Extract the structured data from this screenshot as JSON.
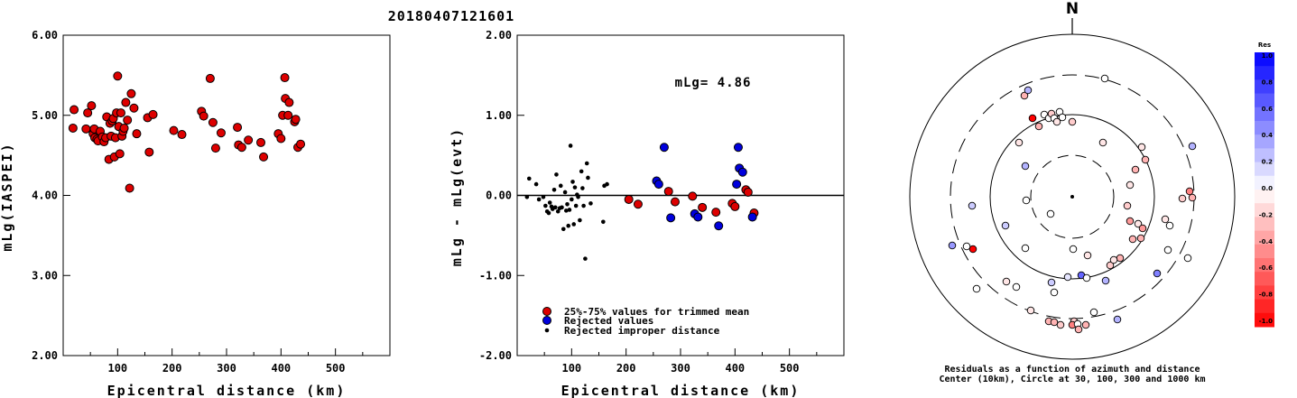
{
  "title": "20180407121601",
  "chart_data": [
    {
      "type": "scatter",
      "xlabel": "Epicentral distance (km)",
      "ylabel": "mLg(IASPEI)",
      "xlim": [
        0,
        600
      ],
      "ylim": [
        2.0,
        6.0
      ],
      "xticks": [
        "100",
        "200",
        "300",
        "400",
        "500"
      ],
      "yticks": [
        "2.00",
        "3.00",
        "4.00",
        "5.00",
        "6.00"
      ],
      "grid": false,
      "series": [
        {
          "color": "#dd0000",
          "points": [
            [
              18,
              4.84
            ],
            [
              20,
              5.07
            ],
            [
              42,
              4.83
            ],
            [
              45,
              5.03
            ],
            [
              52,
              5.12
            ],
            [
              55,
              4.77
            ],
            [
              57,
              4.83
            ],
            [
              58,
              4.72
            ],
            [
              62,
              4.7
            ],
            [
              64,
              4.68
            ],
            [
              68,
              4.8
            ],
            [
              72,
              4.73
            ],
            [
              75,
              4.67
            ],
            [
              78,
              4.72
            ],
            [
              80,
              4.98
            ],
            [
              84,
              4.45
            ],
            [
              86,
              4.9
            ],
            [
              88,
              4.74
            ],
            [
              90,
              4.93
            ],
            [
              92,
              4.96
            ],
            [
              94,
              4.48
            ],
            [
              96,
              4.72
            ],
            [
              98,
              5.03
            ],
            [
              100,
              5.49
            ],
            [
              102,
              4.86
            ],
            [
              104,
              4.52
            ],
            [
              106,
              5.03
            ],
            [
              108,
              4.74
            ],
            [
              110,
              4.8
            ],
            [
              112,
              4.84
            ],
            [
              115,
              5.16
            ],
            [
              118,
              4.94
            ],
            [
              122,
              4.09
            ],
            [
              125,
              5.27
            ],
            [
              130,
              5.09
            ],
            [
              135,
              4.77
            ],
            [
              155,
              4.97
            ],
            [
              158,
              4.54
            ],
            [
              165,
              5.01
            ],
            [
              203,
              4.81
            ],
            [
              218,
              4.76
            ],
            [
              254,
              5.05
            ],
            [
              258,
              4.99
            ],
            [
              270,
              5.46
            ],
            [
              275,
              4.91
            ],
            [
              280,
              4.59
            ],
            [
              290,
              4.78
            ],
            [
              320,
              4.85
            ],
            [
              322,
              4.63
            ],
            [
              328,
              4.6
            ],
            [
              340,
              4.69
            ],
            [
              363,
              4.66
            ],
            [
              368,
              4.48
            ],
            [
              395,
              4.77
            ],
            [
              400,
              4.71
            ],
            [
              403,
              5.0
            ],
            [
              407,
              5.47
            ],
            [
              408,
              5.21
            ],
            [
              413,
              5.0
            ],
            [
              415,
              5.16
            ],
            [
              425,
              4.92
            ],
            [
              427,
              4.95
            ],
            [
              431,
              4.6
            ],
            [
              436,
              4.64
            ]
          ]
        }
      ]
    },
    {
      "type": "scatter",
      "xlabel": "Epicentral distance (km)",
      "ylabel": "mLg - mLg(evt)",
      "xlim": [
        0,
        600
      ],
      "ylim": [
        -2.0,
        2.0
      ],
      "xticks": [
        "100",
        "200",
        "300",
        "400",
        "500"
      ],
      "yticks": [
        "-2.00",
        "-1.00",
        "0.00",
        "1.00",
        "2.00"
      ],
      "zero_line": true,
      "annotation": "mLg= 4.86",
      "legend": [
        "25%-75% values for trimmed mean",
        "Rejected values",
        "Rejected improper distance"
      ],
      "series": [
        {
          "name": "25%-75% values for trimmed mean",
          "color": "#dd0000",
          "marker": "circle",
          "points": [
            [
              205,
              -0.05
            ],
            [
              222,
              -0.11
            ],
            [
              278,
              0.05
            ],
            [
              290,
              -0.08
            ],
            [
              322,
              -0.01
            ],
            [
              340,
              -0.15
            ],
            [
              365,
              -0.21
            ],
            [
              395,
              -0.1
            ],
            [
              400,
              -0.14
            ],
            [
              420,
              0.07
            ],
            [
              424,
              0.04
            ],
            [
              435,
              -0.22
            ]
          ]
        },
        {
          "name": "Rejected values",
          "color": "#0000dd",
          "marker": "circle",
          "points": [
            [
              256,
              0.18
            ],
            [
              260,
              0.14
            ],
            [
              270,
              0.6
            ],
            [
              282,
              -0.28
            ],
            [
              326,
              -0.23
            ],
            [
              332,
              -0.27
            ],
            [
              370,
              -0.38
            ],
            [
              403,
              0.14
            ],
            [
              406,
              0.6
            ],
            [
              408,
              0.34
            ],
            [
              414,
              0.29
            ],
            [
              432,
              -0.27
            ]
          ]
        },
        {
          "name": "Rejected improper distance",
          "color": "#000000",
          "marker": "dot",
          "points": [
            [
              18,
              -0.02
            ],
            [
              22,
              0.21
            ],
            [
              35,
              0.14
            ],
            [
              40,
              -0.05
            ],
            [
              48,
              -0.02
            ],
            [
              52,
              -0.13
            ],
            [
              55,
              -0.2
            ],
            [
              58,
              -0.22
            ],
            [
              60,
              -0.09
            ],
            [
              63,
              -0.14
            ],
            [
              65,
              -0.17
            ],
            [
              68,
              0.07
            ],
            [
              70,
              -0.15
            ],
            [
              72,
              0.26
            ],
            [
              75,
              -0.2
            ],
            [
              78,
              -0.16
            ],
            [
              80,
              0.12
            ],
            [
              82,
              -0.15
            ],
            [
              85,
              -0.42
            ],
            [
              88,
              0.04
            ],
            [
              90,
              -0.19
            ],
            [
              92,
              -0.11
            ],
            [
              94,
              -0.38
            ],
            [
              96,
              -0.18
            ],
            [
              98,
              0.62
            ],
            [
              100,
              -0.05
            ],
            [
              102,
              0.17
            ],
            [
              104,
              -0.36
            ],
            [
              106,
              0.1
            ],
            [
              108,
              -0.13
            ],
            [
              110,
              0.01
            ],
            [
              112,
              -0.02
            ],
            [
              115,
              -0.31
            ],
            [
              118,
              0.3
            ],
            [
              120,
              0.09
            ],
            [
              122,
              -0.13
            ],
            [
              125,
              -0.79
            ],
            [
              128,
              0.4
            ],
            [
              130,
              0.22
            ],
            [
              135,
              -0.1
            ],
            [
              158,
              -0.33
            ],
            [
              160,
              0.12
            ],
            [
              165,
              0.14
            ]
          ]
        }
      ]
    },
    {
      "type": "polar-scatter",
      "north_label": "N",
      "caption_line1": "Residuals as a function of azimuth and distance",
      "caption_line2": "Center (10km), Circle at 30, 100, 300 and 1000 km",
      "colorbar_title": "Res",
      "colorbar_ticks": [
        "1.0",
        "0.8",
        "0.6",
        "0.4",
        "0.2",
        "0.0",
        "-0.2",
        "-0.4",
        "-0.6",
        "-0.8",
        "-1.0"
      ],
      "points": [
        {
          "x": 1135,
          "y": 106,
          "res": -0.3
        },
        {
          "x": 1224,
          "y": 87,
          "res": 0.0
        },
        {
          "x": 1139,
          "y": 100,
          "res": 0.3
        },
        {
          "x": 1144,
          "y": 131,
          "res": -1.0
        },
        {
          "x": 1151,
          "y": 140,
          "res": -0.3
        },
        {
          "x": 1157,
          "y": 127,
          "res": 0.0
        },
        {
          "x": 1162,
          "y": 131,
          "res": 0.0
        },
        {
          "x": 1165,
          "y": 126,
          "res": -0.2
        },
        {
          "x": 1168,
          "y": 131,
          "res": 0.0
        },
        {
          "x": 1171,
          "y": 135,
          "res": -0.1
        },
        {
          "x": 1174,
          "y": 124,
          "res": 0.0
        },
        {
          "x": 1177,
          "y": 130,
          "res": 0.0
        },
        {
          "x": 1188,
          "y": 135,
          "res": -0.2
        },
        {
          "x": 1321,
          "y": 162,
          "res": 0.3
        },
        {
          "x": 1129,
          "y": 158,
          "res": -0.1
        },
        {
          "x": 1222,
          "y": 158,
          "res": -0.1
        },
        {
          "x": 1265,
          "y": 163,
          "res": -0.1
        },
        {
          "x": 1269,
          "y": 177,
          "res": -0.3
        },
        {
          "x": 1136,
          "y": 184,
          "res": 0.3
        },
        {
          "x": 1258,
          "y": 188,
          "res": -0.3
        },
        {
          "x": 1252,
          "y": 205,
          "res": -0.1
        },
        {
          "x": 1318,
          "y": 212,
          "res": -0.5
        },
        {
          "x": 1321,
          "y": 219,
          "res": -0.3
        },
        {
          "x": 1310,
          "y": 220,
          "res": -0.2
        },
        {
          "x": 1249,
          "y": 228,
          "res": -0.2
        },
        {
          "x": 1077,
          "y": 228,
          "res": 0.2
        },
        {
          "x": 1137,
          "y": 222,
          "res": 0.0
        },
        {
          "x": 1164,
          "y": 237,
          "res": 0.0
        },
        {
          "x": 1252,
          "y": 245,
          "res": -0.4
        },
        {
          "x": 1261,
          "y": 248,
          "res": -0.1
        },
        {
          "x": 1291,
          "y": 243,
          "res": -0.1
        },
        {
          "x": 1296,
          "y": 250,
          "res": 0.0
        },
        {
          "x": 1266,
          "y": 253,
          "res": -0.4
        },
        {
          "x": 1114,
          "y": 250,
          "res": 0.2
        },
        {
          "x": 1264,
          "y": 264,
          "res": -0.3
        },
        {
          "x": 1255,
          "y": 265,
          "res": -0.3
        },
        {
          "x": 1055,
          "y": 272,
          "res": 0.4
        },
        {
          "x": 1071,
          "y": 273,
          "res": 0.0
        },
        {
          "x": 1136,
          "y": 275,
          "res": 0.0
        },
        {
          "x": 1078,
          "y": 276,
          "res": -1.0
        },
        {
          "x": 1189,
          "y": 276,
          "res": 0.0
        },
        {
          "x": 1205,
          "y": 283,
          "res": -0.1
        },
        {
          "x": 1241,
          "y": 286,
          "res": -0.3
        },
        {
          "x": 1294,
          "y": 277,
          "res": 0.0
        },
        {
          "x": 1230,
          "y": 294,
          "res": -0.2
        },
        {
          "x": 1234,
          "y": 288,
          "res": -0.1
        },
        {
          "x": 1316,
          "y": 286,
          "res": 0.0
        },
        {
          "x": 1282,
          "y": 303,
          "res": 0.5
        },
        {
          "x": 1198,
          "y": 305,
          "res": 0.6
        },
        {
          "x": 1183,
          "y": 307,
          "res": 0.1
        },
        {
          "x": 1204,
          "y": 308,
          "res": 0.0
        },
        {
          "x": 1225,
          "y": 311,
          "res": 0.3
        },
        {
          "x": 1165,
          "y": 313,
          "res": 0.2
        },
        {
          "x": 1115,
          "y": 312,
          "res": -0.1
        },
        {
          "x": 1126,
          "y": 318,
          "res": 0.0
        },
        {
          "x": 1082,
          "y": 320,
          "res": 0.0
        },
        {
          "x": 1168,
          "y": 324,
          "res": 0.0
        },
        {
          "x": 1142,
          "y": 344,
          "res": -0.1
        },
        {
          "x": 1212,
          "y": 346,
          "res": 0.0
        },
        {
          "x": 1238,
          "y": 354,
          "res": 0.3
        },
        {
          "x": 1162,
          "y": 356,
          "res": -0.3
        },
        {
          "x": 1168,
          "y": 357,
          "res": -0.3
        },
        {
          "x": 1190,
          "y": 356,
          "res": -0.2
        },
        {
          "x": 1175,
          "y": 360,
          "res": -0.2
        },
        {
          "x": 1188,
          "y": 360,
          "res": -0.5
        },
        {
          "x": 1194,
          "y": 359,
          "res": 0.0
        },
        {
          "x": 1203,
          "y": 360,
          "res": -0.3
        },
        {
          "x": 1195,
          "y": 365,
          "res": -0.3
        }
      ]
    }
  ]
}
